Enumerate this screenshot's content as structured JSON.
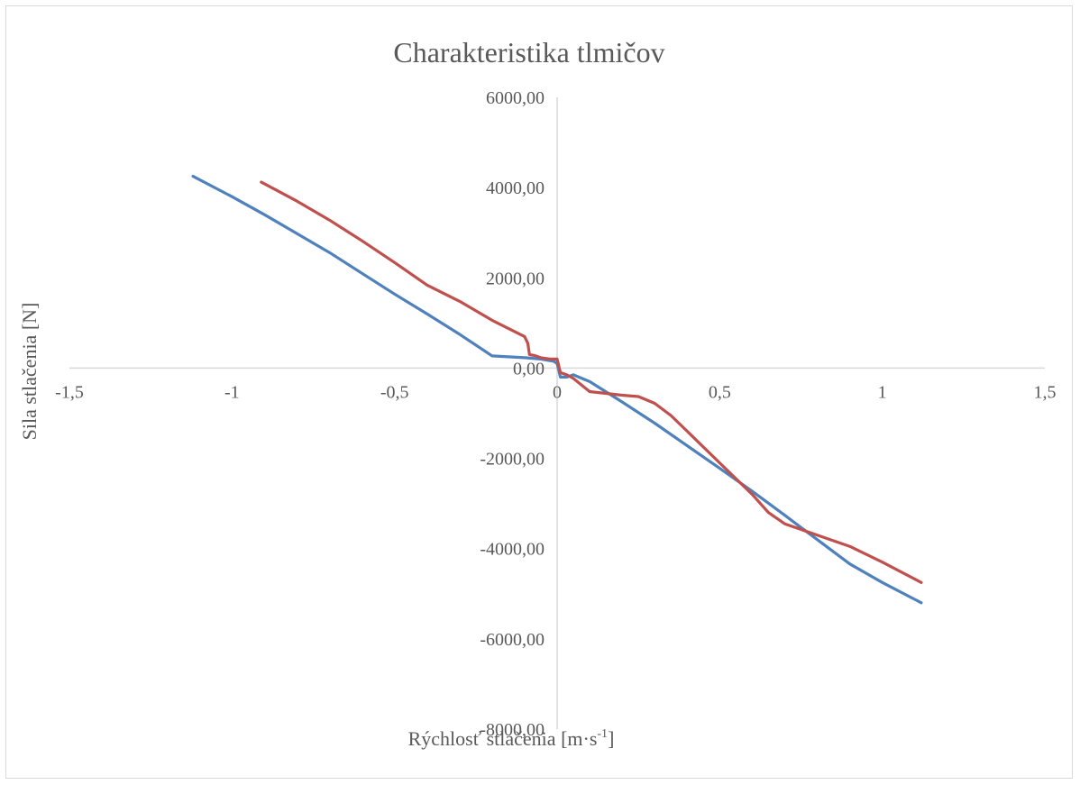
{
  "chart_data": {
    "type": "line",
    "title": "Charakteristika tlmičov",
    "xlabel_main": "Rýchlosť stlačenia [m·s",
    "xlabel_sup": "-1",
    "xlabel_end": "]",
    "ylabel": "Sila stlačenia [N]",
    "xlim": [
      -1.5,
      1.5
    ],
    "ylim": [
      -8000,
      6000
    ],
    "x_ticks": [
      -1.5,
      -1,
      -0.5,
      0,
      0.5,
      1,
      1.5
    ],
    "x_tick_labels": [
      "-1,5",
      "-1",
      "-0,5",
      "0",
      "0,5",
      "1",
      "1,5"
    ],
    "y_ticks": [
      6000,
      4000,
      2000,
      0,
      -2000,
      -4000,
      -6000,
      -8000
    ],
    "y_tick_labels": [
      "6000,00",
      "4000,00",
      "2000,00",
      "0,00",
      "-2000,00",
      "-4000,00",
      "-6000,00",
      "-8000,00"
    ],
    "grid": false,
    "series": [
      {
        "color": "#4f81bd",
        "x": [
          -1.12,
          -1.0,
          -0.9,
          -0.8,
          -0.7,
          -0.6,
          -0.5,
          -0.4,
          -0.3,
          -0.2,
          -0.1,
          -0.05,
          -0.01,
          0.0,
          0.01,
          0.03,
          0.05,
          0.1,
          0.2,
          0.3,
          0.4,
          0.5,
          0.6,
          0.7,
          0.8,
          0.9,
          1.0,
          1.12
        ],
        "y": [
          4250,
          3800,
          3400,
          2980,
          2560,
          2100,
          1640,
          1200,
          750,
          270,
          230,
          200,
          150,
          100,
          -200,
          -200,
          -150,
          -300,
          -750,
          -1220,
          -1720,
          -2220,
          -2730,
          -3260,
          -3800,
          -4340,
          -4750,
          -5200
        ]
      },
      {
        "color": "#c0504d",
        "x": [
          -0.91,
          -0.8,
          -0.7,
          -0.6,
          -0.5,
          -0.4,
          -0.3,
          -0.2,
          -0.1,
          -0.09,
          -0.085,
          -0.07,
          -0.05,
          -0.02,
          0.0,
          0.01,
          0.03,
          0.05,
          0.1,
          0.15,
          0.2,
          0.25,
          0.3,
          0.35,
          0.4,
          0.5,
          0.6,
          0.65,
          0.7,
          0.8,
          0.9,
          1.0,
          1.12
        ],
        "y": [
          4120,
          3700,
          3280,
          2820,
          2340,
          1840,
          1480,
          1060,
          700,
          550,
          300,
          280,
          230,
          200,
          200,
          -100,
          -150,
          -230,
          -520,
          -560,
          -600,
          -630,
          -780,
          -1050,
          -1400,
          -2100,
          -2800,
          -3200,
          -3450,
          -3700,
          -3950,
          -4300,
          -4750
        ]
      }
    ]
  }
}
